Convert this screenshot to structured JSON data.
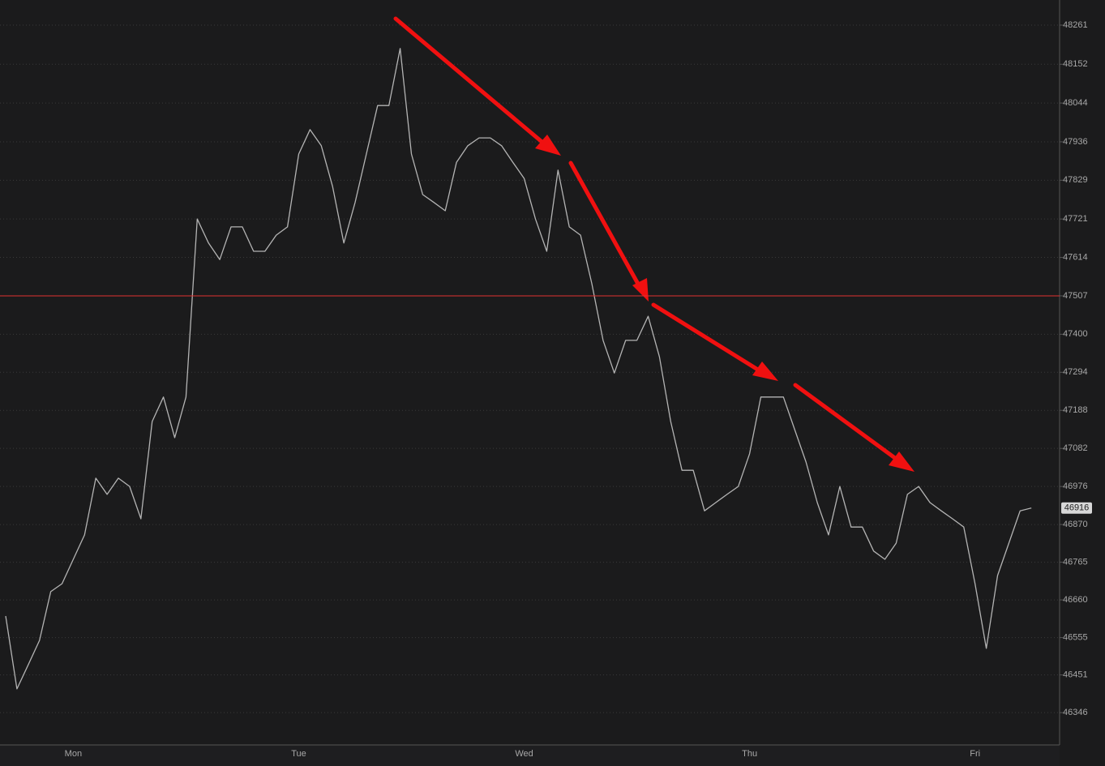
{
  "chart_data": {
    "type": "line",
    "categories": [
      null,
      null,
      null,
      null,
      null,
      null,
      "Mon",
      null,
      null,
      null,
      null,
      null,
      null,
      null,
      null,
      null,
      null,
      null,
      null,
      null,
      null,
      null,
      null,
      null,
      null,
      null,
      "Tue",
      null,
      null,
      null,
      null,
      null,
      null,
      null,
      null,
      null,
      null,
      null,
      null,
      null,
      null,
      null,
      null,
      null,
      null,
      null,
      "Wed",
      null,
      null,
      null,
      null,
      null,
      null,
      null,
      null,
      null,
      null,
      null,
      null,
      null,
      null,
      null,
      null,
      null,
      null,
      null,
      "Thu",
      null,
      null,
      null,
      null,
      null,
      null,
      null,
      null,
      null,
      null,
      null,
      null,
      null,
      null,
      null,
      null,
      null,
      null,
      null,
      "Fri",
      null,
      null,
      null,
      null,
      null,
      null,
      null
    ],
    "values": [
      46615,
      46412,
      46479,
      46547,
      46683,
      46705,
      46773,
      46841,
      46999,
      46954,
      46999,
      46976,
      46886,
      47157,
      47225,
      47112,
      47225,
      47721,
      47654,
      47608,
      47699,
      47699,
      47631,
      47631,
      47676,
      47699,
      47902,
      47970,
      47925,
      47812,
      47654,
      47767,
      47902,
      48037,
      48037,
      48196,
      47902,
      47789,
      47767,
      47744,
      47879,
      47925,
      47947,
      47947,
      47925,
      47879,
      47834,
      47721,
      47631,
      47857,
      47699,
      47676,
      47541,
      47383,
      47292,
      47383,
      47383,
      47450,
      47337,
      47157,
      47021,
      47021,
      46908,
      46931,
      46954,
      46976,
      47067,
      47225,
      47225,
      47225,
      47134,
      47044,
      46931,
      46841,
      46976,
      46863,
      46863,
      46796,
      46773,
      46818,
      46954,
      46976,
      46931,
      46908,
      46886,
      46863,
      46705,
      46525,
      46728,
      46818,
      46908,
      46916,
      null,
      null
    ],
    "color": "#b4b4b4",
    "ylim": [
      46256,
      48331
    ],
    "yticks": [
      46346,
      46451,
      46555,
      46660,
      46765,
      46870,
      46976,
      47082,
      47188,
      47294,
      47400,
      47507,
      47614,
      47721,
      47829,
      47936,
      48044,
      48152,
      48261
    ],
    "grid": true,
    "reference_line": 47507,
    "reference_color": "#e0302f",
    "last_price": 46916
  }
}
